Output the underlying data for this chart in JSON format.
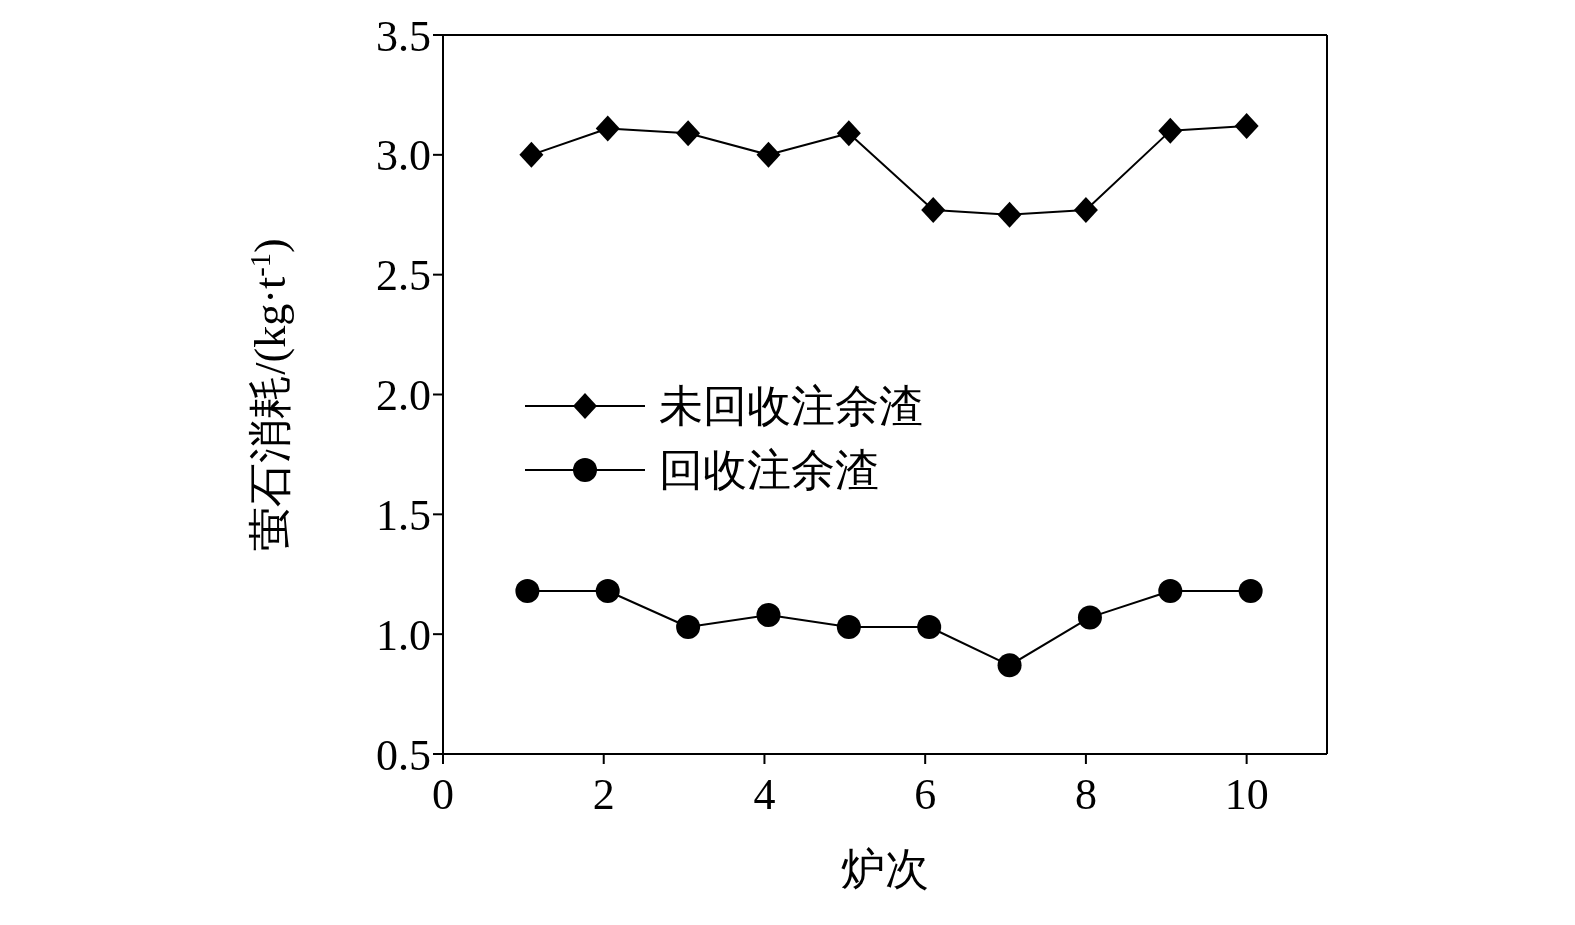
{
  "chart_data": {
    "type": "line",
    "xlabel": "炉次",
    "ylabel": "萤石消耗/(kg·t$^{-1}$)",
    "xlim": [
      0,
      11
    ],
    "xticks": [
      0,
      2,
      4,
      6,
      8,
      10
    ],
    "ylim": [
      0.5,
      3.5
    ],
    "yticks": [
      {
        "value": 0.5,
        "label": "0.5"
      },
      {
        "value": 1,
        "label": "1.0"
      },
      {
        "value": 1.5,
        "label": "1.5"
      },
      {
        "value": 2,
        "label": "2.0"
      },
      {
        "value": 2.5,
        "label": "2.5"
      },
      {
        "value": 3,
        "label": "3.0"
      },
      {
        "value": 3.5,
        "label": "3.5"
      }
    ],
    "legend": "left",
    "grid": false,
    "line_style": "solid",
    "series": [
      {
        "name": "未回收注余渣",
        "color": "#000000",
        "marker": "diamond",
        "x": [
          1.1,
          2.05,
          3.05,
          4.05,
          5.05,
          6.1,
          7.05,
          8.0,
          9.05,
          10.0
        ],
        "values": [
          3.0,
          3.11,
          3.09,
          3.0,
          3.09,
          2.77,
          2.75,
          2.77,
          3.1,
          3.12
        ]
      },
      {
        "name": "回收注余渣",
        "color": "#000000",
        "marker": "circle",
        "x": [
          1.05,
          2.05,
          3.05,
          4.05,
          5.05,
          6.05,
          7.05,
          8.05,
          9.05,
          10.05
        ],
        "values": [
          1.18,
          1.18,
          1.03,
          1.08,
          1.03,
          1.03,
          0.87,
          1.07,
          1.18,
          1.18
        ]
      }
    ]
  }
}
